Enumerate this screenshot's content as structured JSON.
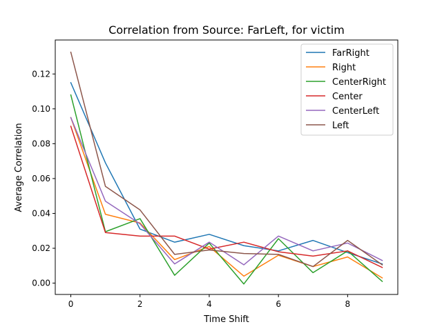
{
  "chart_data": {
    "type": "line",
    "title": "Correlation from Source: FarLeft, for victim",
    "xlabel": "Time Shift",
    "ylabel": "Average Correlation",
    "x": [
      0,
      1,
      2,
      3,
      4,
      5,
      6,
      7,
      8,
      9
    ],
    "xlim": [
      -0.45,
      9.45
    ],
    "ylim": [
      -0.0065,
      0.1395
    ],
    "xticks": [
      0,
      2,
      4,
      6,
      8
    ],
    "xtick_labels": [
      "0",
      "2",
      "4",
      "6",
      "8"
    ],
    "yticks": [
      0.0,
      0.02,
      0.04,
      0.06,
      0.08,
      0.1,
      0.12
    ],
    "ytick_labels": [
      "0.00",
      "0.02",
      "0.04",
      "0.06",
      "0.08",
      "0.10",
      "0.12"
    ],
    "grid": false,
    "legend_position": "top-right",
    "series": [
      {
        "name": "FarRight",
        "color": "#1f77b4",
        "values": [
          0.115,
          0.069,
          0.031,
          0.0235,
          0.028,
          0.0215,
          0.0185,
          0.0245,
          0.0175,
          0.011
        ]
      },
      {
        "name": "Right",
        "color": "#ff7f0e",
        "values": [
          0.095,
          0.0395,
          0.0345,
          0.0135,
          0.021,
          0.004,
          0.016,
          0.0095,
          0.015,
          0.003
        ]
      },
      {
        "name": "CenterRight",
        "color": "#2ca02c",
        "values": [
          0.108,
          0.0295,
          0.037,
          0.0045,
          0.023,
          -0.0005,
          0.0255,
          0.006,
          0.0185,
          0.001
        ]
      },
      {
        "name": "Center",
        "color": "#d62728",
        "values": [
          0.09,
          0.029,
          0.027,
          0.027,
          0.0195,
          0.0235,
          0.018,
          0.0155,
          0.0185,
          0.009
        ]
      },
      {
        "name": "CenterLeft",
        "color": "#9467bd",
        "values": [
          0.095,
          0.047,
          0.034,
          0.011,
          0.0235,
          0.0105,
          0.027,
          0.0185,
          0.023,
          0.013
        ]
      },
      {
        "name": "Left",
        "color": "#8c564b",
        "values": [
          0.1325,
          0.0555,
          0.042,
          0.0165,
          0.019,
          0.017,
          0.0165,
          0.0095,
          0.0245,
          0.0105
        ]
      }
    ]
  }
}
